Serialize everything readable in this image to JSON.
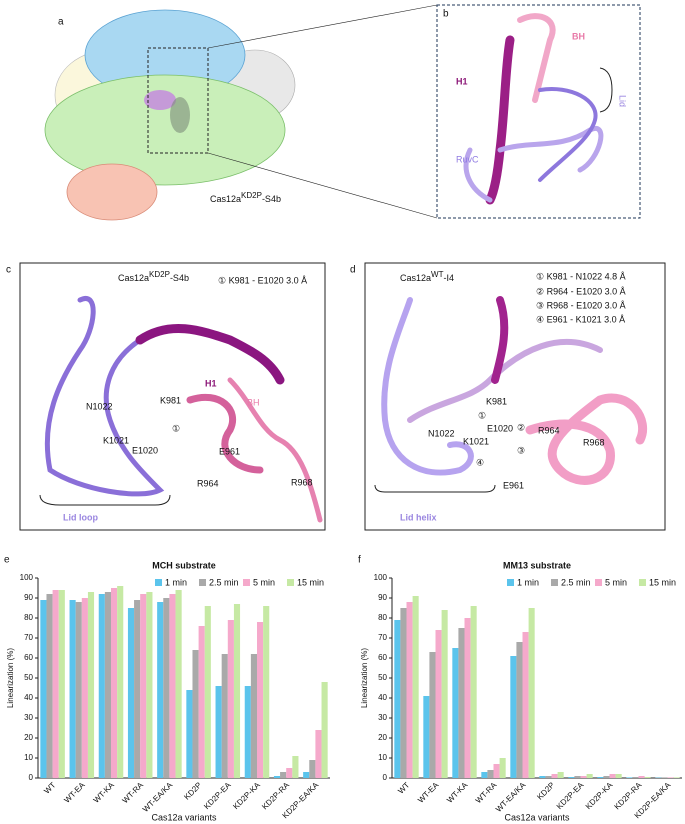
{
  "panels": {
    "a": {
      "letter": "a",
      "caption": {
        "base": "Cas12a",
        "sup": "KD2P",
        "rest": "-S4b"
      }
    },
    "b": {
      "letter": "b",
      "labels": [
        "BH",
        "H1",
        "Lid",
        "RuvC"
      ]
    },
    "c": {
      "letter": "c",
      "title": {
        "base": "Cas12a",
        "sup": "KD2P",
        "rest": "-S4b"
      },
      "legend": [
        "① K981 - E1020  3.0 Å"
      ],
      "labels": [
        "H1",
        "BH",
        "N1022",
        "K981",
        "K1021",
        "E1020",
        "①",
        "E961",
        "R964",
        "R968",
        "Lid loop"
      ]
    },
    "d": {
      "letter": "d",
      "title": {
        "base": "Cas12a",
        "sup": "WT",
        "rest": "-I4"
      },
      "legend": [
        "① K981 - N1022 4.8 Å",
        "② R964 - E1020 3.0 Å",
        "③ R968 - E1020 3.0 Å",
        "④ E961 - K1021 3.0 Å"
      ],
      "labels": [
        "K981",
        "E1020",
        "R964",
        "N1022",
        "①",
        "②",
        "K1021",
        "R968",
        "③",
        "④",
        "E961",
        "Lid helix"
      ]
    }
  },
  "chart_data": [
    {
      "type": "bar",
      "letter": "e",
      "title": "MCH substrate",
      "xlabel": "Cas12a variants",
      "ylabel": "Linearization (%)",
      "categories": [
        "WT",
        "WT-EA",
        "WT-KA",
        "WT-RA",
        "WT-EA/KA",
        "KD2P",
        "KD2P-EA",
        "KD2P-KA",
        "KD2P-RA",
        "KD2P-EA/KA"
      ],
      "series": [
        {
          "name": "1 min",
          "color": "#5bc4ec",
          "values": [
            89,
            89,
            92,
            85,
            88,
            44,
            46,
            46,
            1,
            3
          ]
        },
        {
          "name": "2.5 min",
          "color": "#a9a9a9",
          "values": [
            92,
            88,
            93,
            89,
            90,
            64,
            62,
            62,
            3,
            9
          ]
        },
        {
          "name": "5 min",
          "color": "#f5a9cb",
          "values": [
            94,
            90,
            95,
            92,
            92,
            76,
            79,
            78,
            5,
            24
          ]
        },
        {
          "name": "15 min",
          "color": "#c6e9a4",
          "values": [
            94,
            93,
            96,
            93,
            94,
            86,
            87,
            86,
            11,
            48
          ]
        }
      ],
      "ylim": [
        0,
        100
      ],
      "yticks": [
        0,
        10,
        20,
        30,
        40,
        50,
        60,
        70,
        80,
        90,
        100
      ],
      "legend": "top-right"
    },
    {
      "type": "bar",
      "letter": "f",
      "title": "MM13 substrate",
      "xlabel": "Cas12a variants",
      "ylabel": "Linearization (%)",
      "categories": [
        "WT",
        "WT-EA",
        "WT-KA",
        "WT-RA",
        "WT-EA/KA",
        "KD2P",
        "KD2P-EA",
        "KD2P-KA",
        "KD2P-RA",
        "KD2P-EA/KA"
      ],
      "series": [
        {
          "name": "1 min",
          "color": "#5bc4ec",
          "values": [
            79,
            41,
            65,
            3,
            61,
            1,
            0.5,
            0.5,
            0.3,
            0.2
          ]
        },
        {
          "name": "2.5 min",
          "color": "#a9a9a9",
          "values": [
            85,
            63,
            75,
            4,
            68,
            1,
            1,
            1,
            0.5,
            0.3
          ]
        },
        {
          "name": "5 min",
          "color": "#f5a9cb",
          "values": [
            88,
            74,
            80,
            7,
            73,
            2,
            1,
            2,
            1,
            0.3
          ]
        },
        {
          "name": "15 min",
          "color": "#c6e9a4",
          "values": [
            91,
            84,
            86,
            10,
            85,
            3,
            2,
            2,
            0.5,
            0.3
          ]
        }
      ],
      "ylim": [
        0,
        100
      ],
      "yticks": [
        0,
        10,
        20,
        30,
        40,
        50,
        60,
        70,
        80,
        90,
        100
      ],
      "legend": "top-right"
    }
  ]
}
